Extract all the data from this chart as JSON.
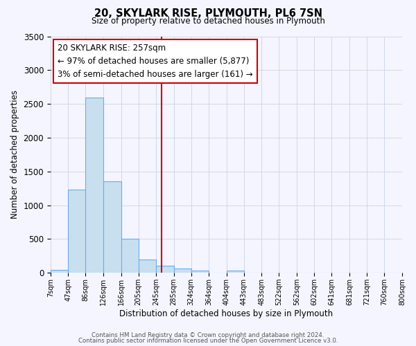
{
  "title": "20, SKYLARK RISE, PLYMOUTH, PL6 7SN",
  "subtitle": "Size of property relative to detached houses in Plymouth",
  "xlabel": "Distribution of detached houses by size in Plymouth",
  "ylabel": "Number of detached properties",
  "footer_line1": "Contains HM Land Registry data © Crown copyright and database right 2024.",
  "footer_line2": "Contains public sector information licensed under the Open Government Licence v3.0.",
  "bin_labels": [
    "7sqm",
    "47sqm",
    "86sqm",
    "126sqm",
    "166sqm",
    "205sqm",
    "245sqm",
    "285sqm",
    "324sqm",
    "364sqm",
    "404sqm",
    "443sqm",
    "483sqm",
    "522sqm",
    "562sqm",
    "602sqm",
    "641sqm",
    "681sqm",
    "721sqm",
    "760sqm",
    "800sqm"
  ],
  "bar_values": [
    40,
    1230,
    2590,
    1350,
    500,
    200,
    110,
    60,
    30,
    0,
    30,
    0,
    0,
    0,
    0,
    0,
    0,
    0,
    0,
    0
  ],
  "bin_edges": [
    7,
    47,
    86,
    126,
    166,
    205,
    245,
    285,
    324,
    364,
    404,
    443,
    483,
    522,
    562,
    602,
    641,
    681,
    721,
    760,
    800
  ],
  "bar_color": "#c8dff0",
  "bar_edge_color": "#6aaced",
  "property_value": 257,
  "vline_color": "#cc0000",
  "ylim": [
    0,
    3500
  ],
  "annotation_title": "20 SKYLARK RISE: 257sqm",
  "annotation_line1": "← 97% of detached houses are smaller (5,877)",
  "annotation_line2": "3% of semi-detached houses are larger (161) →",
  "annotation_box_color": "#cc0000",
  "bg_color": "#f5f5ff",
  "grid_color": "#d0d8e8",
  "yticks": [
    0,
    500,
    1000,
    1500,
    2000,
    2500,
    3000,
    3500
  ]
}
